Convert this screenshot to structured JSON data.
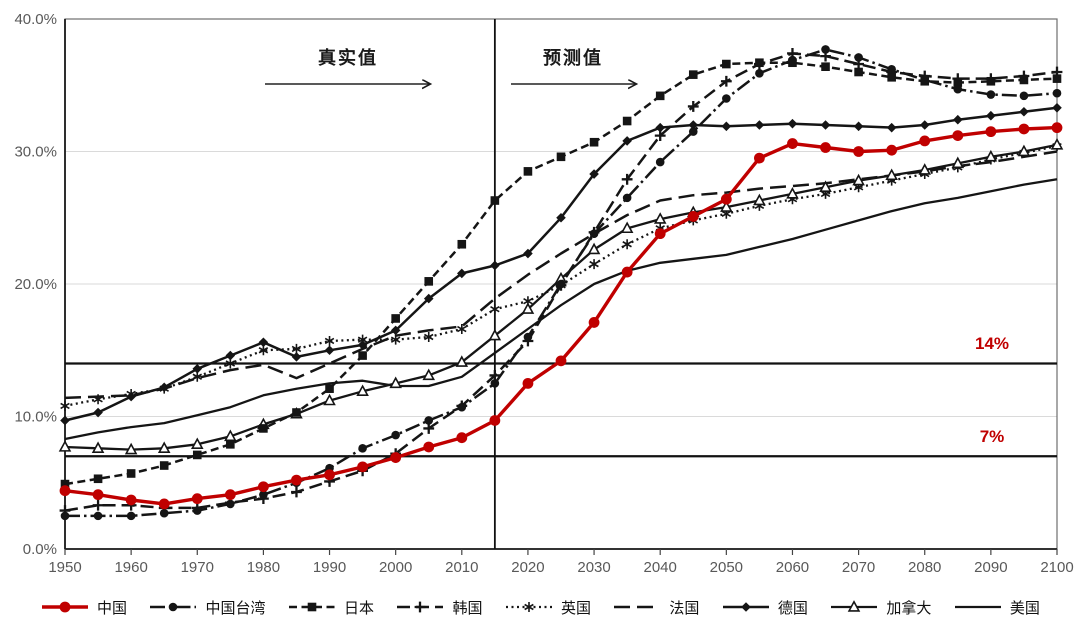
{
  "page": {
    "background": "#FFFFFF"
  },
  "chart_data": {
    "type": "line",
    "title": "",
    "xlabel": "",
    "ylabel": "",
    "x_min": 1950,
    "x_max": 2100,
    "y_min": 0,
    "y_max": 40,
    "grid": "horizontal-light",
    "legend_position": "bottom",
    "grid_color": "#DADADA",
    "axis_color": "#1a1a1a",
    "border_color": "#6e6e6e",
    "tick_label_color": "#595959",
    "line_color": "#1a1a1a",
    "accent_color": "#C00000",
    "x_ticks": [
      1950,
      1960,
      1970,
      1980,
      1990,
      2000,
      2010,
      2020,
      2030,
      2040,
      2050,
      2060,
      2070,
      2080,
      2090,
      2100
    ],
    "y_ticks": [
      {
        "value": 0,
        "label": "0.0%"
      },
      {
        "value": 10,
        "label": "10.0%"
      },
      {
        "value": 20,
        "label": "20.0%"
      },
      {
        "value": 30,
        "label": "30.0%"
      },
      {
        "value": 40,
        "label": "40.0%"
      }
    ],
    "grid_values": [
      10,
      20,
      30
    ],
    "reference_lines": [
      {
        "value": 14,
        "label": "14%",
        "label_color": "#C00000"
      },
      {
        "value": 7,
        "label": "7%",
        "label_color": "#C00000"
      }
    ],
    "divider": {
      "year": 2015
    },
    "annotations": [
      {
        "label": "真实值",
        "text_x": 348,
        "text_y": 44,
        "arrow_x1": 265,
        "arrow_x2": 430,
        "arrow_y": 84
      },
      {
        "label": "预测值",
        "text_x": 573,
        "text_y": 44,
        "arrow_x1": 511,
        "arrow_x2": 636,
        "arrow_y": 84
      }
    ],
    "x": [
      1950,
      1955,
      1960,
      1965,
      1970,
      1975,
      1980,
      1985,
      1990,
      1995,
      2000,
      2005,
      2010,
      2015,
      2020,
      2025,
      2030,
      2035,
      2040,
      2045,
      2050,
      2055,
      2060,
      2065,
      2070,
      2075,
      2080,
      2085,
      2090,
      2095,
      2100
    ],
    "series": [
      {
        "name": "中国",
        "color": "#C00000",
        "dash": "",
        "marker": "circle",
        "marker_size": 5.4,
        "width": 3.4,
        "z": 9,
        "values": [
          4.4,
          4.1,
          3.7,
          3.4,
          3.8,
          4.1,
          4.7,
          5.2,
          5.6,
          6.2,
          6.9,
          7.7,
          8.4,
          9.7,
          12.5,
          14.2,
          17.1,
          20.9,
          23.8,
          25.1,
          26.4,
          29.5,
          30.6,
          30.3,
          30.0,
          30.1,
          30.8,
          31.2,
          31.5,
          31.7,
          31.8
        ]
      },
      {
        "name": "中国台湾",
        "color": "#151515",
        "dash": "15 4 2.5 4",
        "marker": "circle",
        "marker_size": 4.3,
        "width": 2.5,
        "z": 8,
        "values": [
          2.5,
          2.5,
          2.5,
          2.7,
          2.9,
          3.4,
          4.1,
          5.0,
          6.1,
          7.6,
          8.6,
          9.7,
          10.7,
          12.5,
          16.0,
          20.0,
          23.8,
          26.5,
          29.2,
          31.5,
          34.0,
          35.9,
          36.9,
          37.7,
          37.1,
          36.2,
          35.4,
          34.7,
          34.3,
          34.2,
          34.4
        ]
      },
      {
        "name": "日本",
        "color": "#151515",
        "dash": "8 4.5",
        "marker": "square",
        "marker_size": 4.3,
        "width": 2.5,
        "z": 7,
        "values": [
          4.9,
          5.3,
          5.7,
          6.3,
          7.1,
          7.9,
          9.1,
          10.3,
          12.1,
          14.6,
          17.4,
          20.2,
          23.0,
          26.3,
          28.5,
          29.6,
          30.7,
          32.3,
          34.2,
          35.8,
          36.6,
          36.7,
          36.7,
          36.4,
          36.0,
          35.6,
          35.3,
          35.2,
          35.3,
          35.4,
          35.5
        ]
      },
      {
        "name": "韩国",
        "color": "#151515",
        "dash": "13 6",
        "marker": "plus",
        "marker_size": 5.4,
        "width": 2.5,
        "z": 6,
        "values": [
          2.9,
          3.3,
          3.3,
          3.1,
          3.1,
          3.5,
          3.8,
          4.3,
          5.1,
          5.9,
          7.2,
          9.1,
          10.8,
          13.1,
          15.7,
          19.9,
          23.9,
          27.9,
          31.2,
          33.4,
          35.3,
          36.6,
          37.4,
          37.2,
          36.6,
          36.0,
          35.7,
          35.5,
          35.5,
          35.7,
          36.0
        ]
      },
      {
        "name": "英国",
        "color": "#151515",
        "dash": "2 3.5",
        "marker": "star",
        "marker_size": 5.0,
        "width": 2.3,
        "z": 1,
        "values": [
          10.8,
          11.3,
          11.7,
          12.1,
          13.0,
          14.0,
          15.0,
          15.1,
          15.7,
          15.8,
          15.8,
          16.0,
          16.6,
          18.1,
          18.7,
          19.9,
          21.5,
          23.0,
          24.2,
          24.8,
          25.3,
          25.9,
          26.4,
          26.8,
          27.3,
          27.8,
          28.3,
          28.8,
          29.4,
          29.9,
          30.4
        ]
      },
      {
        "name": "法国",
        "color": "#151515",
        "dash": "16 7",
        "marker": "none",
        "marker_size": 0,
        "width": 2.5,
        "z": 2,
        "values": [
          11.4,
          11.5,
          11.6,
          12.1,
          12.9,
          13.5,
          13.9,
          12.9,
          14.0,
          15.1,
          16.1,
          16.5,
          16.8,
          18.9,
          20.7,
          22.3,
          23.8,
          25.2,
          26.3,
          26.7,
          26.9,
          27.2,
          27.4,
          27.6,
          27.9,
          28.2,
          28.5,
          28.9,
          29.2,
          29.6,
          30.0
        ]
      },
      {
        "name": "德国",
        "color": "#151515",
        "dash": "",
        "marker": "diamond",
        "marker_size": 4.8,
        "width": 2.5,
        "z": 5,
        "values": [
          9.7,
          10.3,
          11.5,
          12.2,
          13.6,
          14.6,
          15.6,
          14.5,
          15.0,
          15.4,
          16.5,
          18.9,
          20.8,
          21.4,
          22.3,
          25.0,
          28.3,
          30.8,
          31.8,
          32.0,
          31.9,
          32.0,
          32.1,
          32.0,
          31.9,
          31.8,
          32.0,
          32.4,
          32.7,
          33.0,
          33.3
        ]
      },
      {
        "name": "加拿大",
        "color": "#151515",
        "dash": "",
        "marker": "triangle-open",
        "marker_size": 5.2,
        "width": 2.3,
        "z": 4,
        "values": [
          7.7,
          7.6,
          7.5,
          7.6,
          7.9,
          8.5,
          9.4,
          10.2,
          11.2,
          11.9,
          12.5,
          13.1,
          14.1,
          16.1,
          18.1,
          20.4,
          22.6,
          24.2,
          24.9,
          25.4,
          25.8,
          26.3,
          26.8,
          27.3,
          27.8,
          28.2,
          28.6,
          29.1,
          29.6,
          30.0,
          30.5
        ]
      },
      {
        "name": "美国",
        "color": "#151515",
        "dash": "",
        "marker": "none",
        "marker_size": 0,
        "width": 2.3,
        "z": 3,
        "values": [
          8.3,
          8.8,
          9.2,
          9.5,
          10.1,
          10.7,
          11.6,
          12.1,
          12.5,
          12.7,
          12.3,
          12.3,
          13.0,
          14.8,
          16.6,
          18.4,
          20.0,
          21.0,
          21.6,
          21.9,
          22.2,
          22.8,
          23.4,
          24.1,
          24.8,
          25.5,
          26.1,
          26.5,
          27.0,
          27.5,
          27.9
        ]
      }
    ]
  }
}
